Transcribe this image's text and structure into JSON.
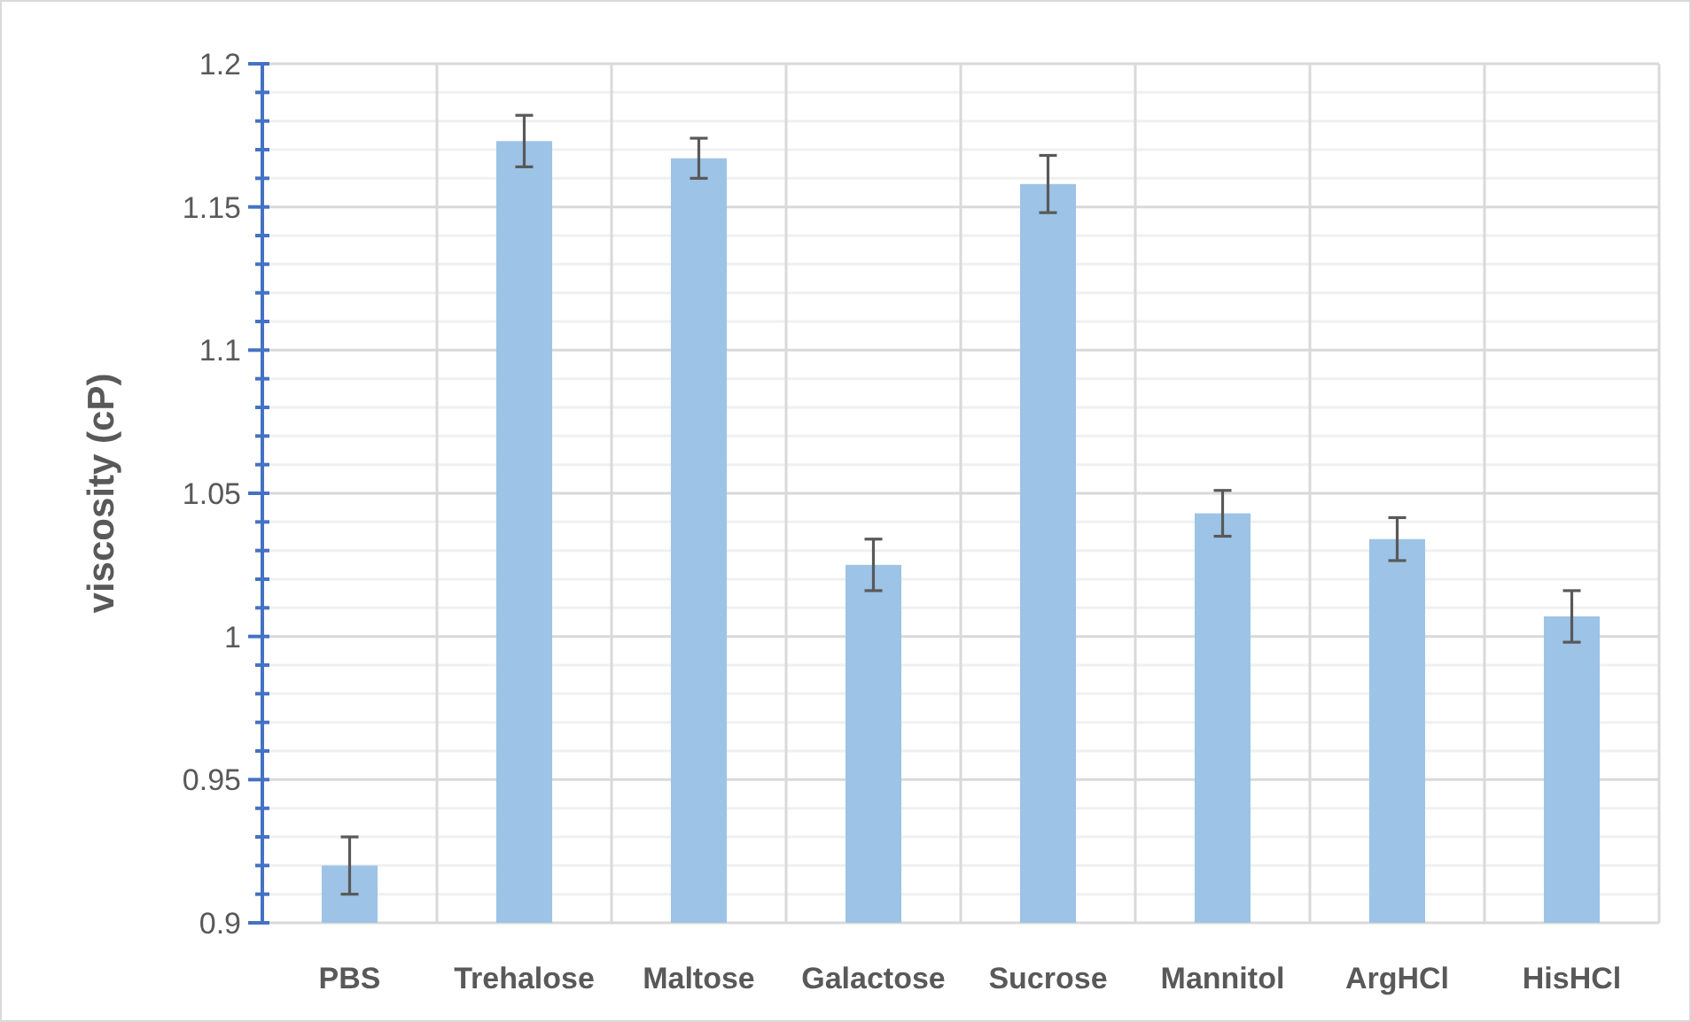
{
  "chart_data": {
    "type": "bar",
    "ylabel": "viscosity (cP)",
    "categories": [
      "PBS",
      "Trehalose",
      "Maltose",
      "Galactose",
      "Sucrose",
      "Mannitol",
      "ArgHCl",
      "HisHCl"
    ],
    "values": [
      0.92,
      1.173,
      1.167,
      1.025,
      1.158,
      1.043,
      1.034,
      1.007
    ],
    "errors": [
      0.01,
      0.009,
      0.007,
      0.009,
      0.01,
      0.008,
      0.0075,
      0.009
    ],
    "color": "#9dc3e6",
    "ylim": [
      0.9,
      1.2
    ],
    "yticks": [
      0.9,
      {
        "value": 0.91,
        "label": null
      },
      {
        "value": 0.92,
        "label": null
      },
      {
        "value": 0.93,
        "label": null
      },
      {
        "value": 0.94,
        "label": null
      },
      0.95,
      {
        "value": 0.96,
        "label": null
      },
      {
        "value": 0.97,
        "label": null
      },
      {
        "value": 0.98,
        "label": null
      },
      {
        "value": 0.99,
        "label": null
      },
      1,
      {
        "value": 1.01,
        "label": null
      },
      {
        "value": 1.02,
        "label": null
      },
      {
        "value": 1.03,
        "label": null
      },
      {
        "value": 1.04,
        "label": null
      },
      1.05,
      {
        "value": 1.06,
        "label": null
      },
      {
        "value": 1.07,
        "label": null
      },
      {
        "value": 1.08,
        "label": null
      },
      {
        "value": 1.09,
        "label": null
      },
      1.1,
      {
        "value": 1.11,
        "label": null
      },
      {
        "value": 1.12,
        "label": null
      },
      {
        "value": 1.13,
        "label": null
      },
      {
        "value": 1.14,
        "label": null
      },
      1.15,
      {
        "value": 1.16,
        "label": null
      },
      {
        "value": 1.17,
        "label": null
      },
      {
        "value": 1.18,
        "label": null
      },
      {
        "value": 1.19,
        "label": null
      },
      1.2
    ],
    "grid": true
  }
}
